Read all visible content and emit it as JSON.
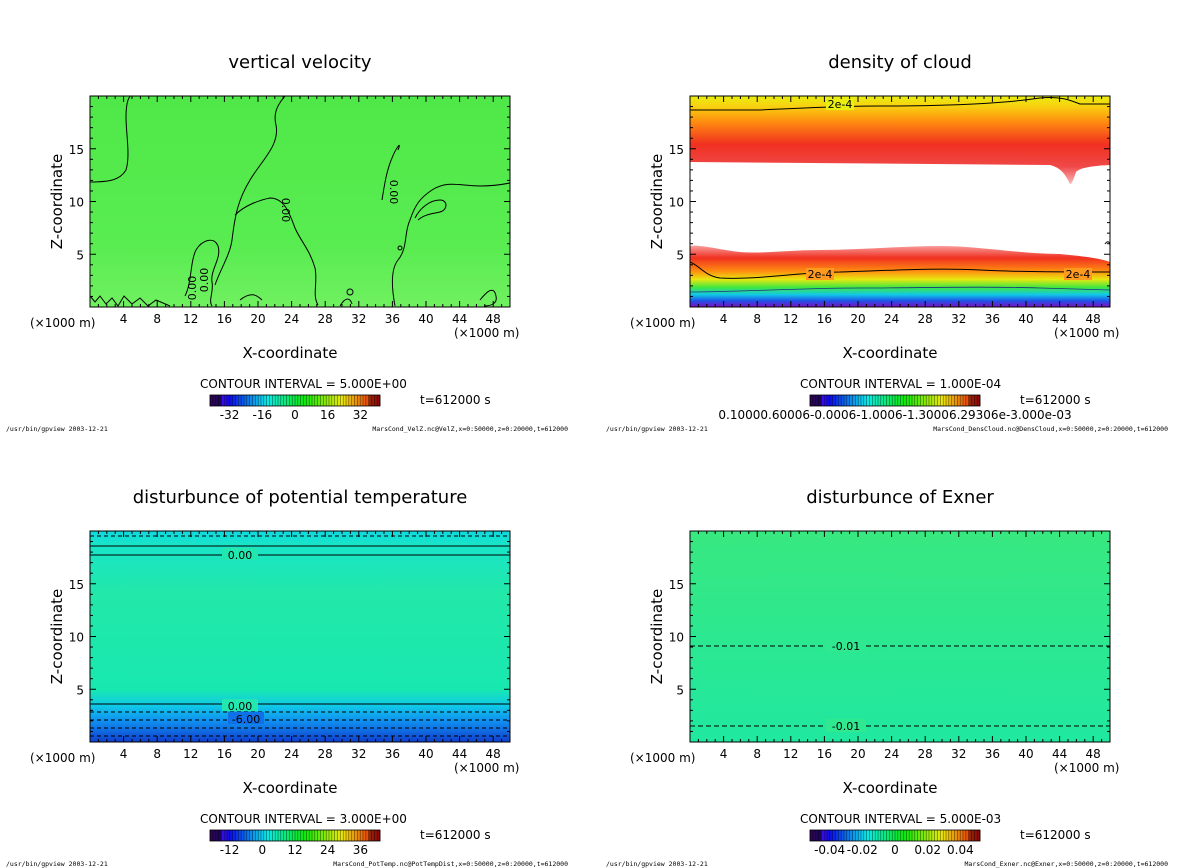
{
  "shared": {
    "xlabel": "X-coordinate",
    "ylabel": "Z-coordinate",
    "unit_left": "(×1000 m)",
    "unit_right": "(×1000 m)",
    "footer_left": "/usr/bin/gpview   2003-12-21"
  },
  "colors": {
    "green_field": "#4ee84a",
    "teal_field": "#22e8a8",
    "exner_field": "#2ee890",
    "cloud_yellow": "#e8ee10",
    "cloud_orange": "#ff8a10",
    "cloud_red": "#f02020",
    "cloud_pink": "#f8b8b8",
    "contour": "#000000"
  },
  "chart_data": [
    {
      "type": "contour",
      "title": "vertical velocity",
      "xlabel": "X-coordinate",
      "ylabel": "Z-coordinate",
      "x_ticks": [
        4,
        8,
        12,
        16,
        20,
        24,
        28,
        32,
        36,
        40,
        44,
        48
      ],
      "y_ticks": [
        5,
        10,
        15
      ],
      "xlim": [
        0,
        50
      ],
      "ylim": [
        0,
        20
      ],
      "contour_labels": [
        "0.00",
        "0.00",
        "0.00",
        "0.00"
      ],
      "contour_interval_text": "CONTOUR INTERVAL = 5.000E+00",
      "time_text": "t=612000 s",
      "colorbar_ticks": [
        "-32",
        "-16",
        "0",
        "16",
        "32"
      ],
      "colorbar_values": [
        -32,
        -16,
        0,
        16,
        32
      ],
      "footer_right": "MarsCond_VelZ.nc@VelZ,x=0:50000,z=0:20000,t=612000"
    },
    {
      "type": "contour",
      "title": "density of cloud",
      "xlabel": "X-coordinate",
      "ylabel": "Z-coordinate",
      "x_ticks": [
        4,
        8,
        12,
        16,
        20,
        24,
        28,
        32,
        36,
        40,
        44,
        48
      ],
      "y_ticks": [
        5,
        10,
        15
      ],
      "xlim": [
        0,
        50
      ],
      "ylim": [
        0,
        20
      ],
      "contour_labels": [
        "2e-4",
        "2e-4",
        "2e-4"
      ],
      "contour_interval_text": "CONTOUR INTERVAL = 1.000E-04",
      "time_text": "t=612000 s",
      "colorbar_tick_text": "0.10000.60006-0.0006-1.0006-1.30006.29306e-3.000e-03",
      "footer_right": "MarsCond_DensCloud.nc@DensCloud,x=0:50000,z=0:20000,t=612000"
    },
    {
      "type": "contour",
      "title": "disturbunce of potential temperature",
      "xlabel": "X-coordinate",
      "ylabel": "Z-coordinate",
      "x_ticks": [
        4,
        8,
        12,
        16,
        20,
        24,
        28,
        32,
        36,
        40,
        44,
        48
      ],
      "y_ticks": [
        5,
        10,
        15
      ],
      "xlim": [
        0,
        50
      ],
      "ylim": [
        0,
        20
      ],
      "contour_labels": [
        "0.00",
        "0.00",
        "-6.00"
      ],
      "contour_interval_text": "CONTOUR INTERVAL = 3.000E+00",
      "time_text": "t=612000 s",
      "colorbar_ticks": [
        "-12",
        "0",
        "12",
        "24",
        "36"
      ],
      "colorbar_values": [
        -12,
        0,
        12,
        24,
        36
      ],
      "footer_right": "MarsCond_PotTemp.nc@PotTempDist,x=0:50000,z=0:20000,t=612000"
    },
    {
      "type": "contour",
      "title": "disturbunce of Exner",
      "xlabel": "X-coordinate",
      "ylabel": "Z-coordinate",
      "x_ticks": [
        4,
        8,
        12,
        16,
        20,
        24,
        28,
        32,
        36,
        40,
        44,
        48
      ],
      "y_ticks": [
        5,
        10,
        15
      ],
      "xlim": [
        0,
        50
      ],
      "ylim": [
        0,
        20
      ],
      "contour_labels": [
        "-0.01",
        "-0.01"
      ],
      "contour_interval_text": "CONTOUR INTERVAL = 5.000E-03",
      "time_text": "t=612000 s",
      "colorbar_ticks": [
        "-0.04",
        "-0.02",
        "0",
        "0.02",
        "0.04"
      ],
      "colorbar_values": [
        -0.04,
        -0.02,
        0,
        0.02,
        0.04
      ],
      "footer_right": "MarsCond_Exner.nc@Exner,x=0:50000,z=0:20000,t=612000"
    }
  ]
}
